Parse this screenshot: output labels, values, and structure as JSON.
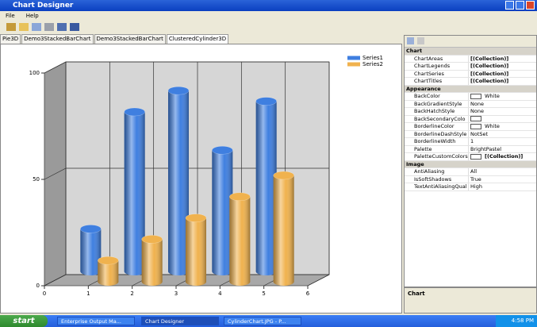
{
  "window": {
    "title": "Chart Designer"
  },
  "menu": [
    "File",
    "Help"
  ],
  "tabs": [
    "Pie3D",
    "Demo3StackedBarChart",
    "Demo3StackedBarChart",
    "ClusteredCylinder3D"
  ],
  "chart_data": {
    "type": "bar",
    "x": [
      1,
      2,
      3,
      4,
      5
    ],
    "series": [
      {
        "name": "Series1",
        "color": "#3f7fe0",
        "values": [
          20,
          75,
          85,
          57,
          80
        ]
      },
      {
        "name": "Series2",
        "color": "#f0b24e",
        "values": [
          10,
          20,
          30,
          40,
          50
        ]
      }
    ],
    "xlim": [
      0,
      6
    ],
    "xticks": [
      0,
      1,
      2,
      3,
      4,
      5,
      6
    ],
    "ylim": [
      0,
      100
    ],
    "yticks": [
      0,
      50,
      100
    ],
    "grid": true,
    "legend": "upper right"
  },
  "properties": {
    "groups": [
      {
        "name": "Chart",
        "items": [
          [
            "ChartAreas",
            "[(Collection)]"
          ],
          [
            "ChartLegends",
            "[(Collection)]"
          ],
          [
            "ChartSeries",
            "[(Collection)]"
          ],
          [
            "ChartTitles",
            "[(Collection)]"
          ]
        ]
      },
      {
        "name": "Appearance",
        "items": [
          [
            "BackColor",
            "White"
          ],
          [
            "BackGradientStyle",
            "None"
          ],
          [
            "BackHatchStyle",
            "None"
          ],
          [
            "BackSecondaryColo"
          ],
          [
            "BorderlineColor",
            "White"
          ],
          [
            "BorderlineDashStyle",
            "NotSet"
          ],
          [
            "BorderlineWidth",
            "1"
          ],
          [
            "Palette",
            "BrightPastel"
          ],
          [
            "PaletteCustomColors",
            "[(Collection)]"
          ]
        ]
      },
      {
        "name": "Image",
        "items": [
          [
            "AntiAliasing",
            "All"
          ],
          [
            "IsSoftShadows",
            "True"
          ],
          [
            "TextAntiAliasingQual",
            "High"
          ]
        ]
      }
    ]
  },
  "description": "Chart",
  "taskbar": {
    "start": "start",
    "items": [
      "Enterprise Output Ma...",
      "Chart Designer",
      "CylinderChart.JPG - P..."
    ],
    "clock": "4:58 PM"
  }
}
